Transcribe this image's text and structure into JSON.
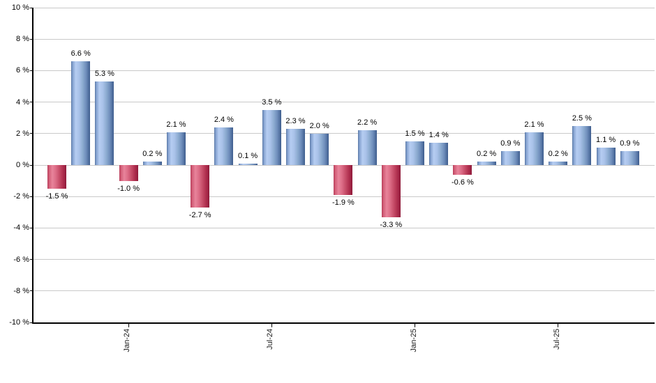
{
  "chart_data": {
    "type": "bar",
    "title": "",
    "xlabel": "",
    "ylabel": "",
    "ylim": [
      -10,
      10
    ],
    "grid": true,
    "legend": false,
    "unit": "%",
    "values": [
      -1.5,
      6.6,
      5.3,
      -1.0,
      0.2,
      2.1,
      -2.7,
      2.4,
      0.1,
      3.5,
      2.3,
      2.0,
      -1.9,
      2.2,
      -3.3,
      1.5,
      1.4,
      -0.6,
      0.2,
      0.9,
      2.1,
      0.2,
      2.5,
      1.1,
      0.9
    ],
    "bar_labels": [
      "-1.5 %",
      "6.6 %",
      "5.3 %",
      "-1.0 %",
      "0.2 %",
      "2.1 %",
      "-2.7 %",
      "2.4 %",
      "0.1 %",
      "3.5 %",
      "2.3 %",
      "2.0 %",
      "-1.9 %",
      "2.2 %",
      "-3.3 %",
      "1.5 %",
      "1.4 %",
      "-0.6 %",
      "0.2 %",
      "0.9 %",
      "2.1 %",
      "0.2 %",
      "2.5 %",
      "1.1 %",
      "0.9 %"
    ],
    "y_ticks": [
      10,
      8,
      6,
      4,
      2,
      0,
      -2,
      -4,
      -6,
      -8,
      -10
    ],
    "y_tick_labels": [
      "10 %",
      "8 %",
      "6 %",
      "4 %",
      "2 %",
      "0 %",
      "-2 %",
      "-4 %",
      "-6 %",
      "-8 %",
      "-10 %"
    ],
    "x_ticks": [
      {
        "label": "Jan-24",
        "index": 3
      },
      {
        "label": "Jul-24",
        "index": 9
      },
      {
        "label": "Jan-25",
        "index": 15
      },
      {
        "label": "Jul-25",
        "index": 21
      }
    ],
    "colors": {
      "positive_bar": "#7e9ccb",
      "negative_bar": "#c64c68",
      "gridline": "#c9c9c9",
      "axis": "#000000",
      "label_text": "#000000"
    }
  }
}
